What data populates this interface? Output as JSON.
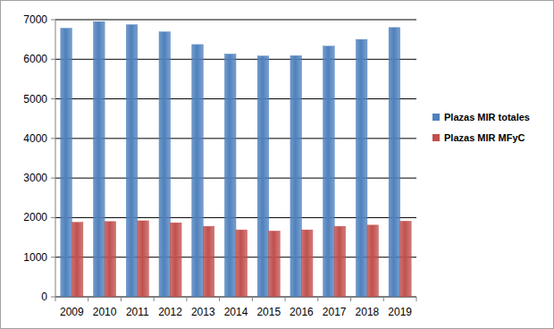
{
  "chart_data": {
    "type": "bar",
    "categories": [
      "2009",
      "2010",
      "2011",
      "2012",
      "2013",
      "2014",
      "2015",
      "2016",
      "2017",
      "2018",
      "2019"
    ],
    "series": [
      {
        "name": "Plazas MIR totales",
        "color": "#4f81bd",
        "values": [
          6780,
          6950,
          6870,
          6690,
          6370,
          6130,
          6080,
          6090,
          6330,
          6500,
          6800
        ]
      },
      {
        "name": "Plazas MIR MFyC",
        "color": "#c0504d",
        "values": [
          1880,
          1900,
          1920,
          1870,
          1780,
          1690,
          1660,
          1690,
          1780,
          1810,
          1910
        ]
      }
    ],
    "ylim": [
      0,
      7000
    ],
    "yticks": [
      0,
      1000,
      2000,
      3000,
      4000,
      5000,
      6000,
      7000
    ],
    "grid": true,
    "legend": "right"
  }
}
